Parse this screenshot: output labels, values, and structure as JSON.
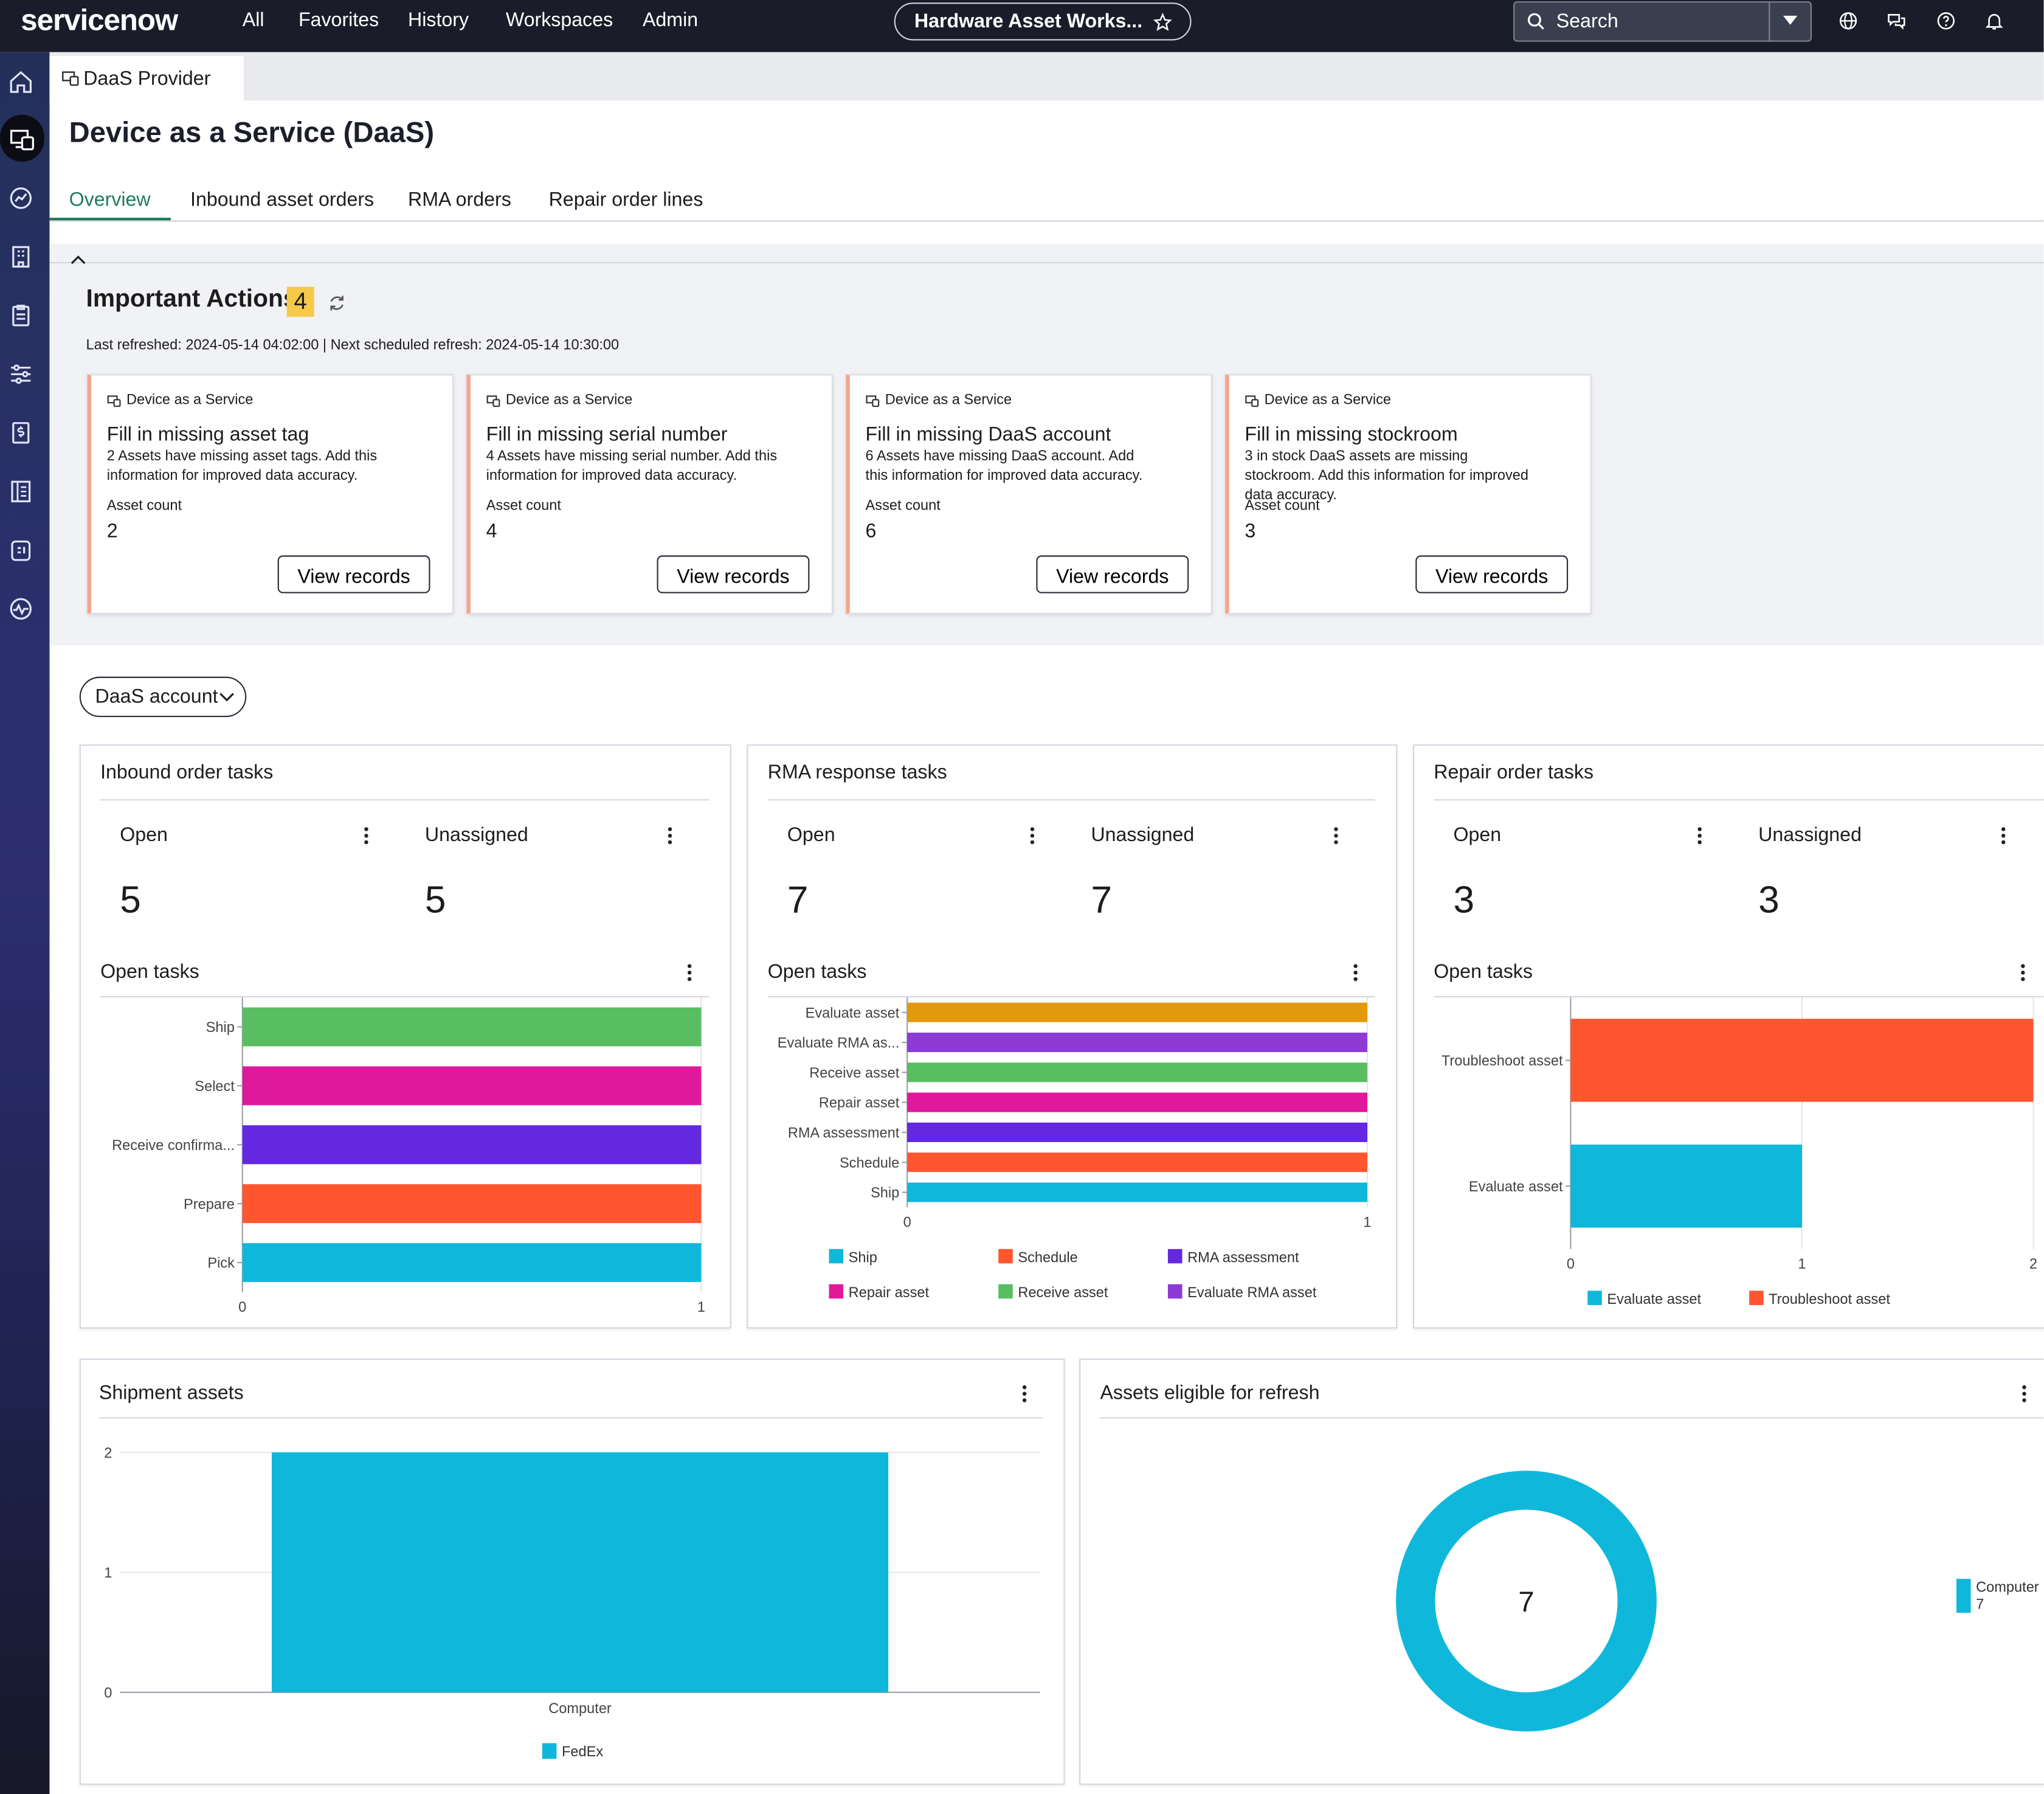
{
  "topnav": {
    "logo": "servicenow",
    "links": [
      "All",
      "Favorites",
      "History",
      "Workspaces",
      "Admin"
    ],
    "workspace_pill": "Hardware Asset Works...",
    "search_placeholder": "Search"
  },
  "tab": {
    "label": "DaaS Provider"
  },
  "page": {
    "title": "Device as a Service (DaaS)",
    "subtabs": [
      "Overview",
      "Inbound asset orders",
      "RMA orders",
      "Repair order lines"
    ],
    "active_subtab": "Overview"
  },
  "important_actions": {
    "title": "Important Actions",
    "badge": "4",
    "refresh_text": "Last refreshed: 2024-05-14 04:02:00 | Next scheduled refresh: 2024-05-14 10:30:00",
    "cards": [
      {
        "source": "Device as a Service",
        "title": "Fill in missing asset tag",
        "desc": "2 Assets have missing asset tags. Add this information for improved data accuracy.",
        "count_label": "Asset count",
        "count": "2",
        "button": "View records"
      },
      {
        "source": "Device as a Service",
        "title": "Fill in missing serial number",
        "desc": "4 Assets have missing serial number. Add this information for improved data accuracy.",
        "count_label": "Asset count",
        "count": "4",
        "button": "View records"
      },
      {
        "source": "Device as a Service",
        "title": "Fill in missing DaaS account",
        "desc": "6 Assets have missing DaaS account. Add this information for improved data accuracy.",
        "count_label": "Asset count",
        "count": "6",
        "button": "View records"
      },
      {
        "source": "Device as a Service",
        "title": "Fill in missing stockroom",
        "desc": "3 in stock DaaS assets are missing stockroom. Add this information for improved data accuracy.",
        "count_label": "Asset count",
        "count": "3",
        "button": "View records"
      }
    ]
  },
  "filter": {
    "label": "DaaS account"
  },
  "widgets": {
    "inbound": {
      "title": "Inbound order tasks",
      "open_label": "Open",
      "open": "5",
      "unassigned_label": "Unassigned",
      "unassigned": "5",
      "chart_title": "Open tasks"
    },
    "rma": {
      "title": "RMA response tasks",
      "open_label": "Open",
      "open": "7",
      "unassigned_label": "Unassigned",
      "unassigned": "7",
      "chart_title": "Open tasks"
    },
    "repair": {
      "title": "Repair order tasks",
      "open_label": "Open",
      "open": "3",
      "unassigned_label": "Unassigned",
      "unassigned": "3",
      "chart_title": "Open tasks"
    },
    "shipment": {
      "title": "Shipment assets"
    },
    "refresh": {
      "title": "Assets eligible for refresh",
      "center": "7"
    }
  },
  "colors": {
    "cyan": "#0fb8da",
    "orange": "#ff5630",
    "purple": "#6328e0",
    "magenta": "#e0199b",
    "green": "#59bd61",
    "amber": "#e2990b",
    "violet": "#8e3bd6"
  },
  "chart_data": [
    {
      "type": "bar",
      "orientation": "horizontal",
      "categories": [
        "Ship",
        "Select",
        "Receive confirma...",
        "Prepare",
        "Pick"
      ],
      "values": [
        1,
        1,
        1,
        1,
        1
      ],
      "colors": [
        "#59bd61",
        "#e0199b",
        "#6328e0",
        "#ff5630",
        "#0fb8da"
      ],
      "xlim": [
        0,
        1
      ],
      "xticks": [
        "0",
        "1"
      ]
    },
    {
      "type": "bar",
      "orientation": "horizontal",
      "categories": [
        "Evaluate asset",
        "Evaluate RMA as...",
        "Receive asset",
        "Repair asset",
        "RMA assessment",
        "Schedule",
        "Ship"
      ],
      "values": [
        1,
        1,
        1,
        1,
        1,
        1,
        1
      ],
      "colors": [
        "#e2990b",
        "#8e3bd6",
        "#59bd61",
        "#e0199b",
        "#6328e0",
        "#ff5630",
        "#0fb8da"
      ],
      "xlim": [
        0,
        1
      ],
      "xticks": [
        "0",
        "1"
      ],
      "legend": [
        {
          "name": "Ship",
          "color": "#0fb8da"
        },
        {
          "name": "Schedule",
          "color": "#ff5630"
        },
        {
          "name": "RMA assessment",
          "color": "#6328e0"
        },
        {
          "name": "Repair asset",
          "color": "#e0199b"
        },
        {
          "name": "Receive asset",
          "color": "#59bd61"
        },
        {
          "name": "Evaluate RMA asset",
          "color": "#8e3bd6"
        }
      ]
    },
    {
      "type": "bar",
      "orientation": "horizontal",
      "categories": [
        "Troubleshoot asset",
        "Evaluate asset"
      ],
      "values": [
        2,
        1
      ],
      "colors": [
        "#ff5630",
        "#0fb8da"
      ],
      "xlim": [
        0,
        2
      ],
      "xticks": [
        "0",
        "1",
        "2"
      ],
      "legend": [
        {
          "name": "Evaluate asset",
          "color": "#0fb8da"
        },
        {
          "name": "Troubleshoot asset",
          "color": "#ff5630"
        }
      ]
    },
    {
      "type": "bar",
      "categories": [
        "Computer"
      ],
      "series": [
        {
          "name": "FedEx",
          "values": [
            2
          ],
          "color": "#0fb8da"
        }
      ],
      "ylim": [
        0,
        2
      ],
      "yticks": [
        "0",
        "1",
        "2"
      ],
      "legend": [
        {
          "name": "FedEx",
          "color": "#0fb8da"
        }
      ]
    },
    {
      "type": "pie",
      "donut": true,
      "slices": [
        {
          "label": "Computer",
          "value": 7,
          "color": "#0fb8da"
        }
      ],
      "center_label": "7"
    }
  ]
}
